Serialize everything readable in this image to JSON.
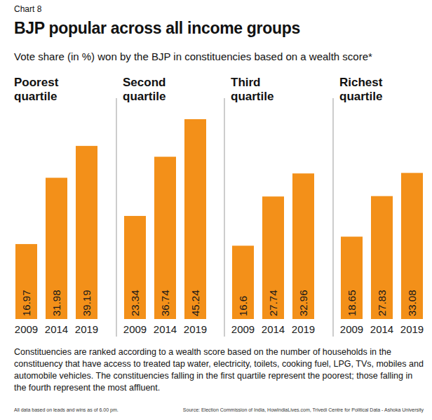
{
  "header": {
    "label": "Chart 8",
    "title": "BJP popular across all income groups",
    "subtitle": "Vote share (in %) won by the BJP in constituencies based on a wealth score*"
  },
  "chart_data": [
    {
      "type": "bar",
      "title": "Poorest quartile",
      "categories": [
        "2009",
        "2014",
        "2019"
      ],
      "values": [
        16.97,
        31.98,
        39.19
      ],
      "color": "#f39019",
      "ylim": [
        0,
        50
      ],
      "data_labels": true,
      "tick_labels": "x"
    },
    {
      "type": "bar",
      "title": "Second quartile",
      "categories": [
        "2009",
        "2014",
        "2019"
      ],
      "values": [
        23.34,
        36.74,
        45.24
      ],
      "color": "#f39019",
      "ylim": [
        0,
        50
      ],
      "data_labels": true,
      "tick_labels": "x"
    },
    {
      "type": "bar",
      "title": "Third quartile",
      "categories": [
        "2009",
        "2014",
        "2019"
      ],
      "values": [
        16.6,
        27.74,
        32.96
      ],
      "color": "#f39019",
      "ylim": [
        0,
        50
      ],
      "data_labels": true,
      "tick_labels": "x"
    },
    {
      "type": "bar",
      "title": "Richest quartile",
      "categories": [
        "2009",
        "2014",
        "2019"
      ],
      "values": [
        18.65,
        27.83,
        33.08
      ],
      "color": "#f39019",
      "ylim": [
        0,
        50
      ],
      "data_labels": true,
      "tick_labels": "x"
    }
  ],
  "footer": {
    "note": "Constituencies are ranked according to a wealth score based on the number of households in the constituency that have access to treated tap water, electricity, toilets, cooking fuel, LPG, TVs, mobiles and automobile vehicles. The constituencies falling in the first quartile represent the poorest; those falling in the fourth represent the most affluent.",
    "data_note": "All data based on leads and wins as of 6.00 pm.",
    "source": "Source: Election Commission of India, HowIndiaLives.com, Trivedi Centre for Political Data - Ashoka University"
  }
}
